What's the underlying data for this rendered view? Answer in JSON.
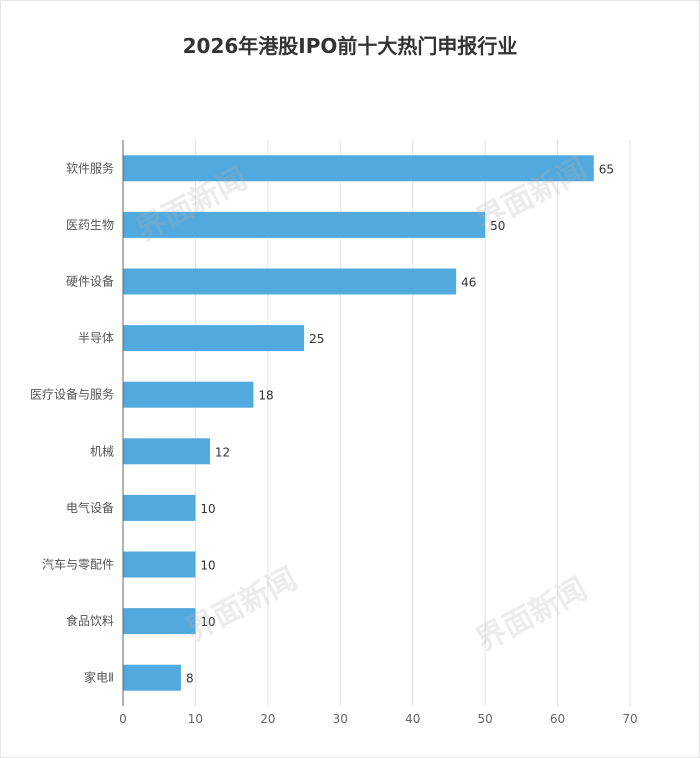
{
  "chart_data": {
    "type": "bar",
    "orientation": "horizontal",
    "title": "2026年港股IPO前十大热门申报行业",
    "categories": [
      "软件服务",
      "医药生物",
      "硬件设备",
      "半导体",
      "医疗设备与服务",
      "机械",
      "电气设备",
      "汽车与零配件",
      "食品饮料",
      "家电Ⅱ"
    ],
    "values": [
      65,
      50,
      46,
      25,
      18,
      12,
      10,
      10,
      10,
      8
    ],
    "xlim": [
      0,
      70
    ],
    "xticks": [
      0,
      10,
      20,
      30,
      40,
      50,
      60,
      70
    ],
    "grid": true,
    "data_labels": true,
    "bar_color": "#52a9de",
    "legend": "none"
  },
  "watermark": "界面新闻"
}
